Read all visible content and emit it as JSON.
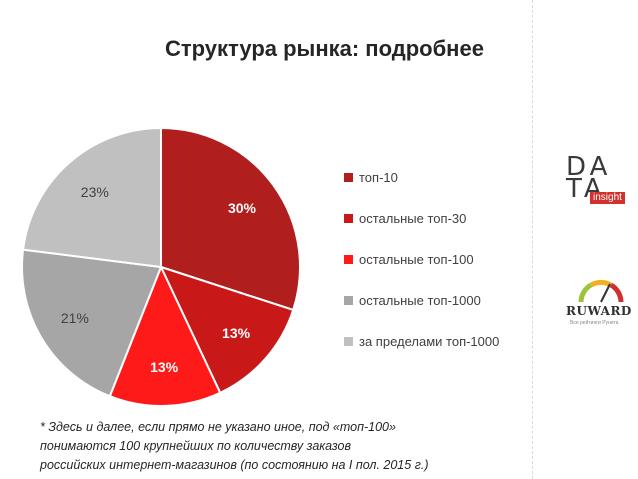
{
  "chart_data": {
    "type": "pie",
    "title": "Структура рынка: подробнее",
    "categories": [
      "топ-10",
      "остальные топ-30",
      "остальные топ-100",
      "остальные топ-1000",
      "за пределами топ-1000"
    ],
    "values": [
      30,
      13,
      13,
      21,
      23
    ],
    "labels": [
      "30%",
      "13%",
      "13%",
      "21%",
      "23%"
    ],
    "colors": [
      "#b01e1e",
      "#c81818",
      "#ff1a1a",
      "#a6a6a6",
      "#c0c0c0"
    ],
    "label_colors": [
      "#ffffff",
      "#ffffff",
      "#ffffff",
      "#404040",
      "#404040"
    ],
    "legend_position": "right"
  },
  "footnote": [
    "* Здесь и далее, если прямо не указано иное,  под «топ-100»",
    "понимаются 100 крупнейших по количеству заказов",
    "российских интернет-магазинов (по состоянию на I пол. 2015 г.)"
  ],
  "logos": {
    "data_insight": {
      "line1": "DA",
      "line2": "TA",
      "badge": "insight"
    },
    "ruward": {
      "name": "RUWARD",
      "tagline": "Все рейтинги Рунета"
    }
  }
}
